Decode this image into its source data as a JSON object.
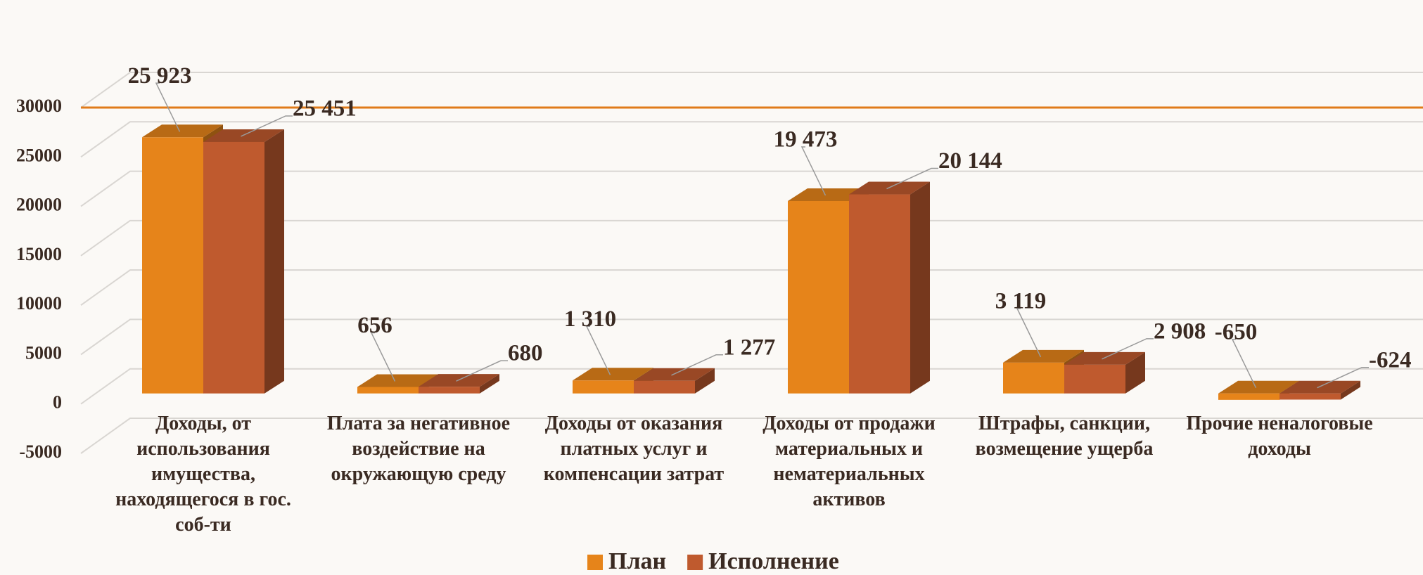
{
  "chart_data": {
    "type": "bar3d",
    "categories": [
      "Доходы, от использования имущества, находящегося в гос. соб-ти",
      "Плата за негативное воздействие на окружающую среду",
      "Доходы от оказания платных услуг и компенсации затрат",
      "Доходы от продажи материальных и нематериальных активов",
      "Штрафы, санкции, возмещение ущерба",
      "Прочие неналоговые доходы"
    ],
    "series": [
      {
        "name": "План",
        "color": "#e6841a",
        "values": [
          25923,
          656,
          1310,
          19473,
          3119,
          -650
        ],
        "value_labels": [
          "25 923",
          "656",
          "1 310",
          "19 473",
          "3 119",
          "-650"
        ]
      },
      {
        "name": "Исполнение",
        "color": "#bf5a2e",
        "values": [
          25451,
          680,
          1277,
          20144,
          2908,
          -624
        ],
        "value_labels": [
          "25 451",
          "680",
          "1 277",
          "20 144",
          "2 908",
          "-624"
        ]
      }
    ],
    "ylim": [
      -5000,
      30000
    ],
    "yticks": [
      -5000,
      0,
      5000,
      10000,
      15000,
      20000,
      25000,
      30000
    ],
    "grid": true,
    "legend": "bottom"
  }
}
